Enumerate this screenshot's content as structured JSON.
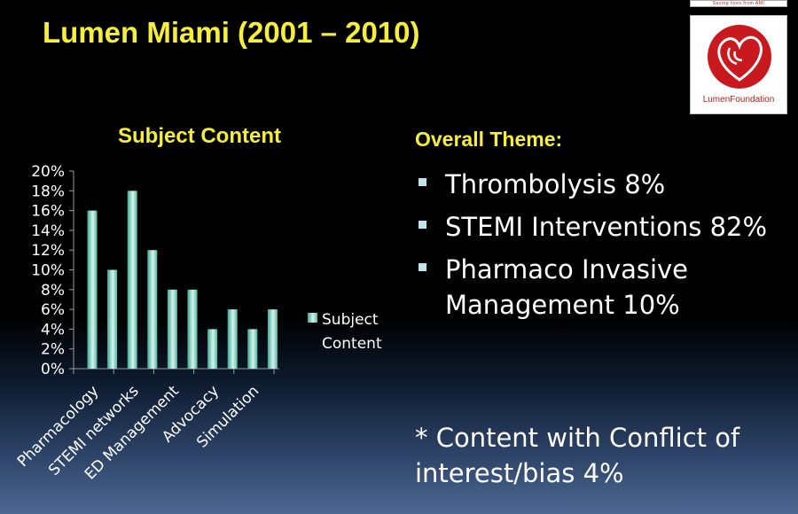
{
  "title": "Lumen Miami (2001 – 2010)",
  "logo": {
    "tagline": "Saving lives from AMI",
    "name": "LumenFoundation",
    "accent": "#c8191e"
  },
  "theme": {
    "heading": "Overall Theme:",
    "items": [
      "Thrombolysis 8%",
      " STEMI Interventions 82%",
      "Pharmaco Invasive Management 10%"
    ],
    "note": "* Content with Conflict of interest/bias 4%"
  },
  "colors": {
    "title": "#f5ee3a",
    "bar": "#4fb8a6",
    "bar_highlight": "#d8f3ec",
    "text": "#ffffff",
    "bullet": "#bfe3ef"
  },
  "chart_data": {
    "type": "bar",
    "title": "Subject Content",
    "categories": [
      "Pharmacology",
      "",
      "STEMI networks",
      "",
      "ED Management",
      "",
      "Advocacy",
      "",
      "Simulation",
      ""
    ],
    "series": [
      {
        "name": "Subject Content",
        "values": [
          16,
          10,
          18,
          12,
          8,
          8,
          4,
          6,
          4,
          6
        ]
      }
    ],
    "y_ticks": [
      "0%",
      "2%",
      "4%",
      "6%",
      "8%",
      "10%",
      "12%",
      "14%",
      "16%",
      "18%",
      "20%"
    ],
    "ylim": [
      0,
      20
    ],
    "grid": false,
    "legend": "right"
  }
}
